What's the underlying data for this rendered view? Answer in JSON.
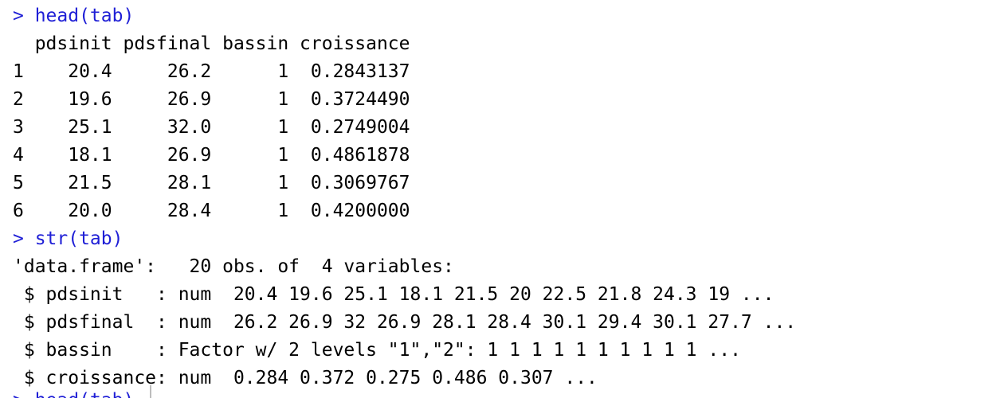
{
  "console": {
    "lines": [
      {
        "type": "cmd",
        "text": "> head(tab)"
      },
      {
        "type": "out",
        "text": "  pdsinit pdsfinal bassin croissance"
      },
      {
        "type": "out",
        "text": "1    20.4     26.2      1  0.2843137"
      },
      {
        "type": "out",
        "text": "2    19.6     26.9      1  0.3724490"
      },
      {
        "type": "out",
        "text": "3    25.1     32.0      1  0.2749004"
      },
      {
        "type": "out",
        "text": "4    18.1     26.9      1  0.4861878"
      },
      {
        "type": "out",
        "text": "5    21.5     28.1      1  0.3069767"
      },
      {
        "type": "out",
        "text": "6    20.0     28.4      1  0.4200000"
      },
      {
        "type": "cmd",
        "text": "> str(tab)"
      },
      {
        "type": "out",
        "text": "'data.frame':   20 obs. of  4 variables:"
      },
      {
        "type": "out",
        "text": " $ pdsinit   : num  20.4 19.6 25.1 18.1 21.5 20 22.5 21.8 24.3 19 ..."
      },
      {
        "type": "out",
        "text": " $ pdsfinal  : num  26.2 26.9 32 26.9 28.1 28.4 30.1 29.4 30.1 27.7 ..."
      },
      {
        "type": "out",
        "text": " $ bassin    : Factor w/ 2 levels \"1\",\"2\": 1 1 1 1 1 1 1 1 1 1 ..."
      },
      {
        "type": "out",
        "text": " $ croissance: num  0.284 0.372 0.275 0.486 0.307 ..."
      },
      {
        "type": "cmd",
        "text": "> head(tab)"
      }
    ]
  }
}
